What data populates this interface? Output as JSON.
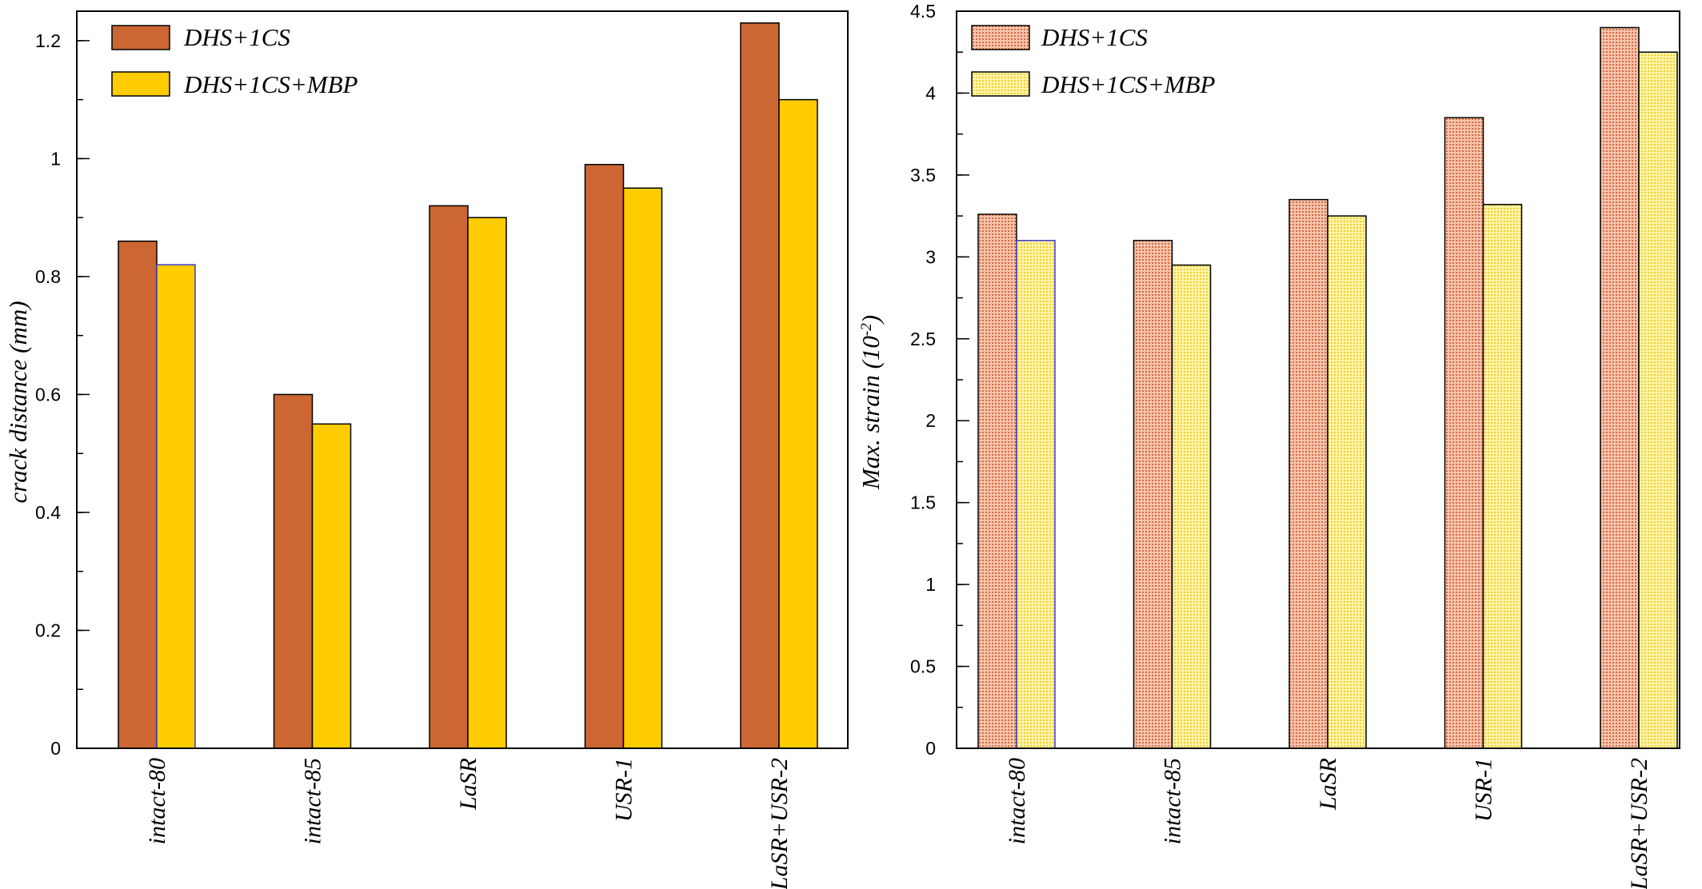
{
  "chart_data": [
    {
      "type": "bar",
      "categories": [
        "intact-80",
        "intact-85",
        "LaSR",
        "USR-1",
        "LaSR+USR-2"
      ],
      "series": [
        {
          "name": "DHS+1CS",
          "values": [
            0.86,
            0.6,
            0.92,
            0.99,
            1.23
          ],
          "color": "#cc6633"
        },
        {
          "name": "DHS+1CS+MBP",
          "values": [
            0.82,
            0.55,
            0.9,
            0.95,
            1.1
          ],
          "color": "#ffcc00"
        }
      ],
      "ylabel": "crack distance (mm)",
      "ylim": [
        0,
        1.25
      ],
      "yticks": [
        "0",
        "0.2",
        "0.4",
        "0.6",
        "0.8",
        "1",
        "1.2"
      ],
      "legend_position": "top-left",
      "grid": false,
      "pattern": "solid"
    },
    {
      "type": "bar",
      "categories": [
        "intact-80",
        "intact-85",
        "LaSR",
        "USR-1",
        "LaSR+USR-2"
      ],
      "series": [
        {
          "name": "DHS+1CS",
          "values": [
            3.26,
            3.1,
            3.35,
            3.85,
            4.4
          ],
          "color": "#f3b096"
        },
        {
          "name": "DHS+1CS+MBP",
          "values": [
            3.1,
            2.95,
            3.25,
            3.32,
            4.25
          ],
          "color": "#ffe770"
        }
      ],
      "ylabel_main": "Max. strain (10",
      "ylabel_exp": "-2",
      "ylabel_close": ")",
      "ylim": [
        0,
        4.5
      ],
      "yticks": [
        "0",
        "0.5",
        "1",
        "1.5",
        "2",
        "2.5",
        "3",
        "3.5",
        "4",
        "4.5"
      ],
      "legend_position": "top-left",
      "grid": false,
      "pattern": "dotted"
    }
  ]
}
